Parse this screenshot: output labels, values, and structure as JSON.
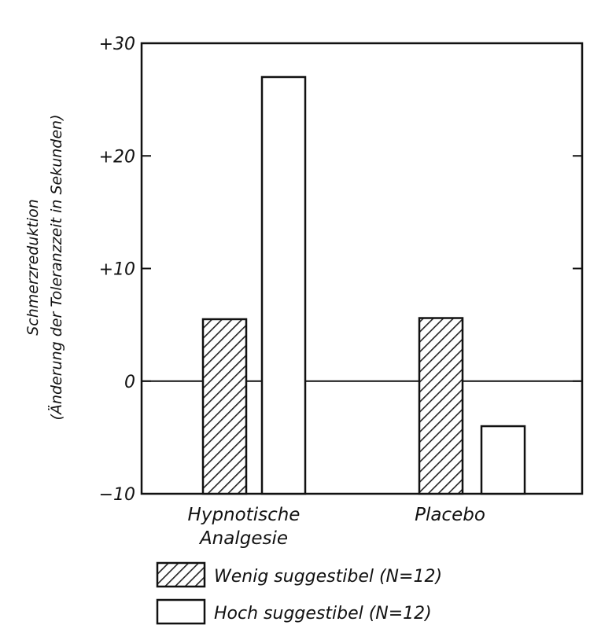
{
  "chart_data": {
    "type": "bar",
    "title": "",
    "ylabel": "Schmerzreduktion (Änderung der Toleranzzeit in Sekunden)",
    "ylabel_lines": [
      "Schmerzreduktion",
      "(Änderung der Toleranzzeit in Sekunden)"
    ],
    "xlabel": "",
    "categories": [
      "Hypnotische Analgesie",
      "Placebo"
    ],
    "category_lines": [
      [
        "Hypnotische",
        "Analgesie"
      ],
      [
        "Placebo"
      ]
    ],
    "series": [
      {
        "name": "Wenig suggestibel (N=12)",
        "values": [
          5.5,
          5.6
        ],
        "pattern": "hatched"
      },
      {
        "name": "Hoch suggestibel (N=12)",
        "values": [
          27,
          -4
        ],
        "pattern": "open"
      }
    ],
    "ylim": [
      -10,
      30
    ],
    "yticks": [
      -10,
      0,
      10,
      20,
      30
    ],
    "ytick_labels": [
      "−10",
      "0",
      "+10",
      "+20",
      "+30"
    ],
    "zero_line": true,
    "grid": false,
    "legend_position": "bottom"
  }
}
